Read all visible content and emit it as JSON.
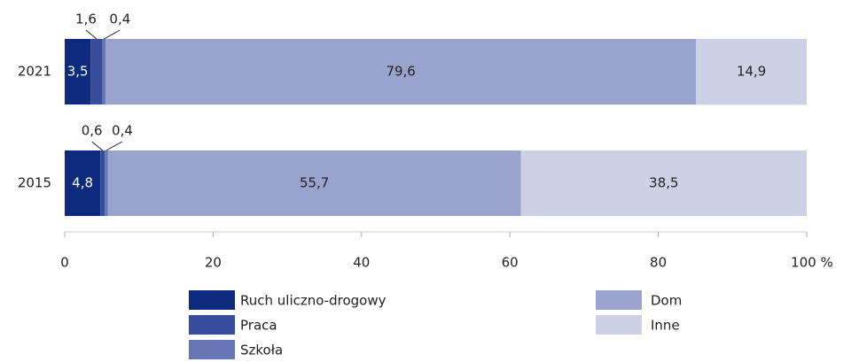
{
  "chart_data": {
    "type": "stacked-bar-horizontal",
    "categories": [
      "2021",
      "2015"
    ],
    "series": [
      {
        "name": "Ruch uliczno-drogowy",
        "color": "#0e2a7e",
        "values": [
          3.5,
          4.8
        ],
        "value_labels": [
          "3,5",
          "4,8"
        ]
      },
      {
        "name": "Praca",
        "color": "#374d9c",
        "values": [
          1.6,
          0.6
        ],
        "value_labels": [
          "1,6",
          "0,6"
        ]
      },
      {
        "name": "Szkoła",
        "color": "#6576b4",
        "values": [
          0.4,
          0.4
        ],
        "value_labels": [
          "0,4",
          "0,4"
        ]
      },
      {
        "name": "Dom",
        "color": "#9aa3cb",
        "values": [
          79.6,
          55.7
        ],
        "value_labels": [
          "79,6",
          "55,7"
        ]
      },
      {
        "name": "Inne",
        "color": "#cdd1e6",
        "values": [
          14.9,
          38.5
        ],
        "value_labels": [
          "14,9",
          "38,5"
        ]
      }
    ],
    "xlim": [
      0,
      100
    ],
    "xticks": [
      0,
      20,
      40,
      60,
      80,
      {
        "value": 100,
        "label": "100 %"
      }
    ]
  }
}
